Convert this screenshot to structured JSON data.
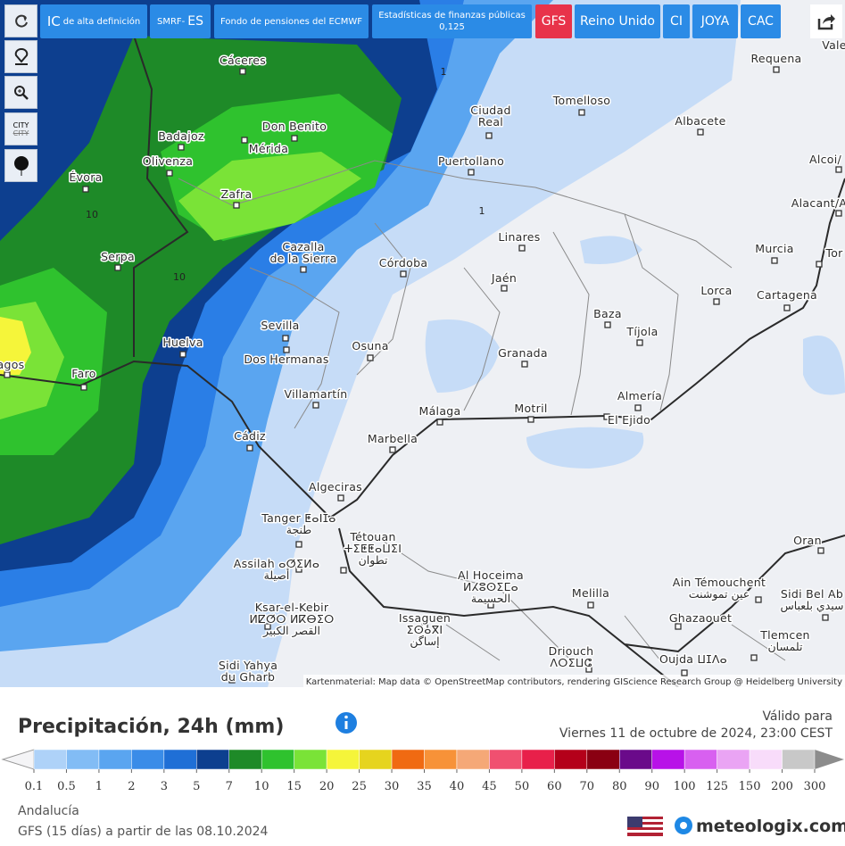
{
  "toolbar": {
    "buttons": [
      {
        "main": "IC",
        "sub": "de alta definición"
      },
      {
        "main": "ES",
        "sub": "SMRF-"
      },
      {
        "sub": "Fondo de pensiones del ECMWF"
      },
      {
        "sub": "Estadísticas de finanzas públicas",
        "second": "0,125"
      },
      {
        "main": "GFS"
      },
      {
        "main": "Reino Unido"
      },
      {
        "main": "CI"
      },
      {
        "main": "JOYA"
      },
      {
        "main": "CAC"
      }
    ],
    "side_text": "CITY"
  },
  "map": {
    "cities": [
      {
        "lines": [
          "Cáceres"
        ]
      },
      {
        "lines": [
          "Don Benito"
        ]
      },
      {
        "lines": [
          "Badajoz"
        ]
      },
      {
        "lines": [
          "Mérida"
        ]
      },
      {
        "lines": [
          "Olivenza"
        ]
      },
      {
        "lines": [
          "Évora"
        ]
      },
      {
        "lines": [
          "Zafra"
        ]
      },
      {
        "lines": [
          "Ciudad",
          "Real"
        ]
      },
      {
        "lines": [
          "Tomelloso"
        ]
      },
      {
        "lines": [
          "Albacete"
        ]
      },
      {
        "lines": [
          "Requena"
        ]
      },
      {
        "lines": [
          "Vale"
        ]
      },
      {
        "lines": [
          "Puertollano"
        ]
      },
      {
        "lines": [
          "Alcoi/"
        ]
      },
      {
        "lines": [
          "Alacant/A"
        ]
      },
      {
        "lines": [
          "Linares"
        ]
      },
      {
        "lines": [
          "Jaén"
        ]
      },
      {
        "lines": [
          "Córdoba"
        ]
      },
      {
        "lines": [
          "Cazalla",
          "de la Sierra"
        ]
      },
      {
        "lines": [
          "Serpa"
        ]
      },
      {
        "lines": [
          "Murcia"
        ]
      },
      {
        "lines": [
          "Tor"
        ]
      },
      {
        "lines": [
          "Lorca"
        ]
      },
      {
        "lines": [
          "Cartagena"
        ]
      },
      {
        "lines": [
          "Baza"
        ]
      },
      {
        "lines": [
          "Tíjola"
        ]
      },
      {
        "lines": [
          "Sevilla"
        ]
      },
      {
        "lines": [
          "Osuna"
        ]
      },
      {
        "lines": [
          "Granada"
        ]
      },
      {
        "lines": [
          "Huelva"
        ]
      },
      {
        "lines": [
          "Dos Hermanas"
        ]
      },
      {
        "lines": [
          "Faro"
        ]
      },
      {
        "lines": [
          "agos"
        ]
      },
      {
        "lines": [
          "Almería"
        ]
      },
      {
        "lines": [
          "Villamartín"
        ]
      },
      {
        "lines": [
          "Málaga"
        ]
      },
      {
        "lines": [
          "Motril"
        ]
      },
      {
        "lines": [
          "El Ejido"
        ]
      },
      {
        "lines": [
          "Marbella"
        ]
      },
      {
        "lines": [
          "Cádiz"
        ]
      },
      {
        "lines": [
          "Algeciras"
        ]
      },
      {
        "lines": [
          "Tanger ⵟⴰⵏⵊⴰ",
          "طنجة"
        ]
      },
      {
        "lines": [
          "Tétouan",
          "ⵜⵉⵟⵟⴰⵡⵉⵏ",
          "تطوان"
        ]
      },
      {
        "lines": [
          "Assilah ⴰⵚⵉⵍⴰ",
          "أصيلة"
        ]
      },
      {
        "lines": [
          "Al Hoceima",
          "ⵍⵃⵓⵙⵉⵎⴰ",
          "الحسيمة"
        ]
      },
      {
        "lines": [
          "Melilla"
        ]
      },
      {
        "lines": [
          "Ksar-el-Kebir",
          "ⵍⵇⵚⵔ ⵍⴽⴱⵉⵔ",
          "القصر الكبير"
        ]
      },
      {
        "lines": [
          "Issaguen",
          "ⵉⵙⴰⴳⵏ",
          "إساگن"
        ]
      },
      {
        "lines": [
          "Driouch",
          "ⴷⵔⵉⵡⵛ"
        ]
      },
      {
        "lines": [
          "Oujda ⵡⵊⴷⴰ"
        ]
      },
      {
        "lines": [
          "Sidi Yahya",
          "du Gharb"
        ]
      },
      {
        "lines": [
          "Ain Témouchent",
          "عين تموشنت"
        ]
      },
      {
        "lines": [
          "Ghazaouet"
        ]
      },
      {
        "lines": [
          "Tlemcen",
          "تلمسان"
        ]
      },
      {
        "lines": [
          "Oran"
        ]
      },
      {
        "lines": [
          "Sidi Bel Ab",
          "سيدي بلعباس"
        ]
      }
    ],
    "contour_labels": [
      "10",
      "10",
      "1",
      "1"
    ],
    "attribution": "Kartenmaterial: Map data © OpenStreetMap contributors, rendering GIScience Research Group @ Heidelberg University"
  },
  "legend": {
    "title": "Precipitación, 24h (mm)",
    "valid_label": "Válido para",
    "valid_time": "Viernes 11 de octubre de 2024, 23:00 CEST",
    "labels": [
      0.1,
      0.5,
      1,
      2,
      3,
      5,
      7,
      10,
      15,
      20,
      25,
      30,
      35,
      40,
      45,
      50,
      60,
      70,
      80,
      90,
      100,
      125,
      150,
      200,
      300
    ],
    "colors": [
      "#aed2f8",
      "#82bcf5",
      "#5aa5f0",
      "#3a8ce8",
      "#1f6fd6",
      "#0d3f8f",
      "#1e8a28",
      "#2fc22e",
      "#7ae337",
      "#f5f53a",
      "#e6d41e",
      "#f06a12",
      "#f79238",
      "#f5a877",
      "#f05070",
      "#e8204a",
      "#b4001a",
      "#8a0012",
      "#6a0a8a",
      "#b812e8",
      "#d860f0",
      "#eaa4f4",
      "#f8dcfa",
      "#c8c8c8"
    ]
  },
  "footer": {
    "region": "Andalucía",
    "model": "GFS (15 días) a partir de las 08.10.2024",
    "brand": "meteologix.com"
  }
}
